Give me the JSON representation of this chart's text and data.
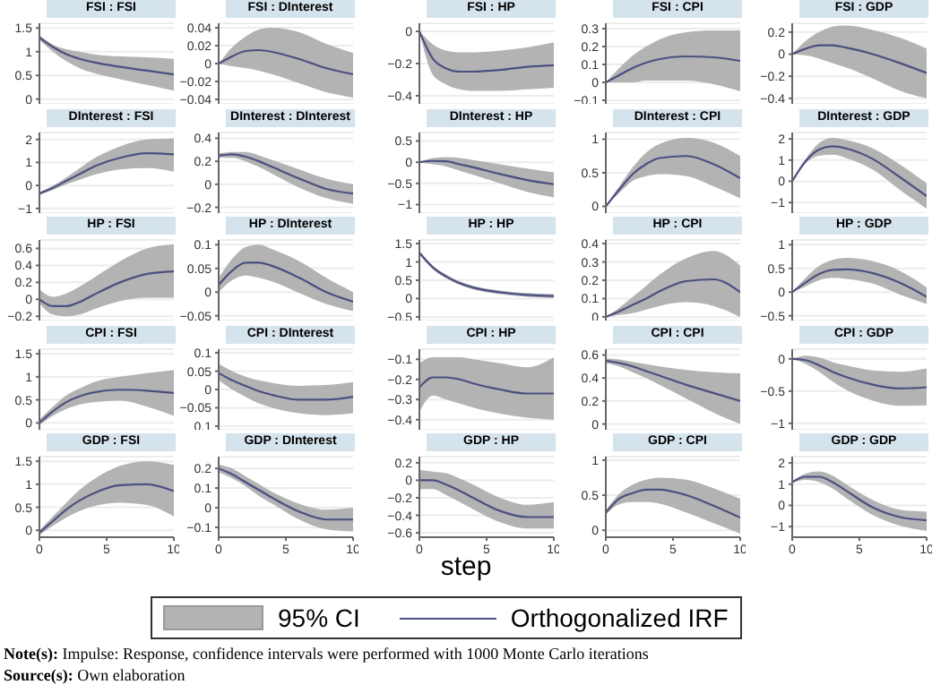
{
  "chart_data": [
    {
      "type": "line",
      "title": "FSI : FSI",
      "x": [
        0,
        1,
        2,
        3,
        4,
        6,
        8,
        10
      ],
      "xlim": [
        0,
        10
      ],
      "xticks": [
        0,
        5,
        10
      ],
      "ylim": [
        -0.1,
        1.6
      ],
      "yticks": [
        0,
        0.5,
        1,
        1.5
      ],
      "grid": "y",
      "tick_labels": "y",
      "series": [
        {
          "color": "#4b5080",
          "values": [
            1.3,
            1.1,
            0.95,
            0.85,
            0.78,
            0.68,
            0.6,
            0.52
          ],
          "lower": [
            1.25,
            1.0,
            0.8,
            0.65,
            0.55,
            0.42,
            0.3,
            0.18
          ],
          "upper": [
            1.35,
            1.15,
            1.05,
            1.0,
            0.95,
            0.9,
            0.88,
            0.85
          ]
        }
      ]
    },
    {
      "type": "line",
      "title": "FSI : DInterest",
      "x": [
        0,
        1,
        2,
        3,
        4,
        6,
        8,
        10
      ],
      "xlim": [
        0,
        10
      ],
      "xticks": [
        0,
        5,
        10
      ],
      "ylim": [
        -0.045,
        0.045
      ],
      "yticks": [
        -0.04,
        -0.02,
        0,
        0.02,
        0.04
      ],
      "grid": "y",
      "tick_labels": "y",
      "series": [
        {
          "color": "#4b5080",
          "values": [
            0,
            0.008,
            0.014,
            0.015,
            0.013,
            0.005,
            -0.005,
            -0.012
          ],
          "lower": [
            0,
            -0.003,
            -0.005,
            -0.008,
            -0.012,
            -0.022,
            -0.032,
            -0.038
          ],
          "upper": [
            0,
            0.018,
            0.03,
            0.038,
            0.04,
            0.035,
            0.022,
            0.012
          ]
        }
      ]
    },
    {
      "type": "line",
      "title": "FSI : HP",
      "x": [
        0,
        1,
        2,
        3,
        4,
        6,
        8,
        10
      ],
      "xlim": [
        0,
        10
      ],
      "xticks": [
        0,
        5,
        10
      ],
      "ylim": [
        -0.45,
        0.05
      ],
      "yticks": [
        -0.4,
        -0.2,
        0
      ],
      "grid": "y",
      "tick_labels": "y",
      "series": [
        {
          "color": "#4b5080",
          "values": [
            0,
            -0.17,
            -0.23,
            -0.25,
            -0.25,
            -0.24,
            -0.22,
            -0.21
          ],
          "lower": [
            0,
            -0.27,
            -0.33,
            -0.36,
            -0.37,
            -0.37,
            -0.36,
            -0.35
          ],
          "upper": [
            0,
            -0.08,
            -0.12,
            -0.13,
            -0.13,
            -0.12,
            -0.1,
            -0.07
          ]
        }
      ]
    },
    {
      "type": "line",
      "title": "FSI : CPI",
      "x": [
        0,
        1,
        2,
        3,
        4,
        6,
        8,
        10
      ],
      "xlim": [
        0,
        10
      ],
      "xticks": [
        0,
        5,
        10
      ],
      "ylim": [
        -0.12,
        0.33
      ],
      "yticks": [
        -0.1,
        0,
        0.1,
        0.2,
        0.3
      ],
      "grid": "y",
      "tick_labels": "y",
      "series": [
        {
          "color": "#4b5080",
          "values": [
            0,
            0.04,
            0.08,
            0.11,
            0.13,
            0.145,
            0.14,
            0.12
          ],
          "lower": [
            0,
            0,
            0,
            0.01,
            0.01,
            0.01,
            -0.01,
            -0.05
          ],
          "upper": [
            0,
            0.08,
            0.15,
            0.2,
            0.24,
            0.28,
            0.29,
            0.29
          ]
        }
      ]
    },
    {
      "type": "line",
      "title": "FSI : GDP",
      "x": [
        0,
        1,
        2,
        3,
        4,
        6,
        8,
        10
      ],
      "xlim": [
        0,
        10
      ],
      "xticks": [
        0,
        5,
        10
      ],
      "ylim": [
        -0.45,
        0.28
      ],
      "yticks": [
        -0.4,
        -0.2,
        0,
        0.2
      ],
      "grid": "y",
      "tick_labels": "y",
      "series": [
        {
          "color": "#4b5080",
          "values": [
            0,
            0.05,
            0.08,
            0.08,
            0.06,
            0,
            -0.08,
            -0.17
          ],
          "lower": [
            0,
            -0.01,
            -0.04,
            -0.08,
            -0.12,
            -0.22,
            -0.33,
            -0.4
          ],
          "upper": [
            0,
            0.12,
            0.2,
            0.25,
            0.26,
            0.22,
            0.15,
            0.05
          ]
        }
      ]
    },
    {
      "type": "line",
      "title": "DInterest : FSI",
      "x": [
        0,
        1,
        2,
        3,
        4,
        6,
        8,
        10
      ],
      "xlim": [
        0,
        10
      ],
      "xticks": [
        0,
        5,
        10
      ],
      "ylim": [
        -1.2,
        2.3
      ],
      "yticks": [
        -1,
        0,
        1,
        2
      ],
      "grid": "y",
      "tick_labels": "y",
      "series": [
        {
          "color": "#4b5080",
          "values": [
            -0.35,
            -0.1,
            0.2,
            0.5,
            0.8,
            1.2,
            1.4,
            1.35
          ],
          "lower": [
            -0.4,
            -0.2,
            0.05,
            0.25,
            0.45,
            0.7,
            0.75,
            0.6
          ],
          "upper": [
            -0.3,
            0,
            0.35,
            0.75,
            1.15,
            1.7,
            2.0,
            2.05
          ]
        }
      ]
    },
    {
      "type": "line",
      "title": "DInterest : DInterest",
      "x": [
        0,
        1,
        2,
        3,
        4,
        6,
        8,
        10
      ],
      "xlim": [
        0,
        10
      ],
      "xticks": [
        0,
        5,
        10
      ],
      "ylim": [
        -0.25,
        0.45
      ],
      "yticks": [
        -0.2,
        0,
        0.2,
        0.4
      ],
      "grid": "y",
      "tick_labels": "y",
      "series": [
        {
          "color": "#4b5080",
          "values": [
            0.25,
            0.26,
            0.24,
            0.2,
            0.15,
            0.05,
            -0.04,
            -0.08
          ],
          "lower": [
            0.23,
            0.23,
            0.2,
            0.15,
            0.09,
            -0.03,
            -0.12,
            -0.17
          ],
          "upper": [
            0.27,
            0.28,
            0.28,
            0.25,
            0.21,
            0.13,
            0.05,
            0
          ]
        }
      ]
    },
    {
      "type": "line",
      "title": "DInterest : HP",
      "x": [
        0,
        1,
        2,
        3,
        4,
        6,
        8,
        10
      ],
      "xlim": [
        0,
        10
      ],
      "xticks": [
        0,
        5,
        10
      ],
      "ylim": [
        -1.2,
        0.7
      ],
      "yticks": [
        -1,
        -0.5,
        0,
        0.5
      ],
      "grid": "y",
      "tick_labels": "y",
      "series": [
        {
          "color": "#4b5080",
          "values": [
            0,
            0.03,
            0.02,
            -0.05,
            -0.12,
            -0.28,
            -0.42,
            -0.52
          ],
          "lower": [
            0,
            -0.05,
            -0.1,
            -0.2,
            -0.3,
            -0.5,
            -0.7,
            -0.83
          ],
          "upper": [
            0,
            0.1,
            0.12,
            0.1,
            0.05,
            -0.05,
            -0.15,
            -0.24
          ]
        }
      ]
    },
    {
      "type": "line",
      "title": "DInterest : CPI",
      "x": [
        0,
        1,
        2,
        3,
        4,
        6,
        8,
        10
      ],
      "xlim": [
        0,
        10
      ],
      "xticks": [
        0,
        5,
        10
      ],
      "ylim": [
        -0.1,
        1.1
      ],
      "yticks": [
        0,
        0.5,
        1
      ],
      "grid": "y",
      "tick_labels": "y",
      "series": [
        {
          "color": "#4b5080",
          "values": [
            0,
            0.25,
            0.48,
            0.63,
            0.72,
            0.75,
            0.63,
            0.42
          ],
          "lower": [
            0,
            0.2,
            0.38,
            0.45,
            0.48,
            0.45,
            0.3,
            0.12
          ],
          "upper": [
            0,
            0.3,
            0.58,
            0.8,
            0.93,
            1.02,
            0.95,
            0.75
          ]
        }
      ]
    },
    {
      "type": "line",
      "title": "DInterest : GDP",
      "x": [
        0,
        1,
        2,
        3,
        4,
        6,
        8,
        10
      ],
      "xlim": [
        0,
        10
      ],
      "xticks": [
        0,
        5,
        10
      ],
      "ylim": [
        -1.5,
        2.3
      ],
      "yticks": [
        -1,
        0,
        1,
        2
      ],
      "grid": "y",
      "tick_labels": "y",
      "series": [
        {
          "color": "#4b5080",
          "values": [
            0,
            0.95,
            1.5,
            1.65,
            1.55,
            1.05,
            0.2,
            -0.7
          ],
          "lower": [
            0,
            0.85,
            1.2,
            1.25,
            1.1,
            0.55,
            -0.4,
            -1.3
          ],
          "upper": [
            0,
            1.05,
            1.8,
            2.05,
            1.95,
            1.55,
            0.8,
            -0.1
          ]
        }
      ]
    },
    {
      "type": "line",
      "title": "HP : FSI",
      "x": [
        0,
        1,
        2,
        3,
        4,
        6,
        8,
        10
      ],
      "xlim": [
        0,
        10
      ],
      "xticks": [
        0,
        5,
        10
      ],
      "ylim": [
        -0.25,
        0.7
      ],
      "yticks": [
        -0.2,
        0,
        0.2,
        0.4,
        0.6
      ],
      "grid": "y",
      "tick_labels": "y",
      "series": [
        {
          "color": "#4b5080",
          "values": [
            0,
            -0.08,
            -0.08,
            -0.03,
            0.05,
            0.2,
            0.3,
            0.33
          ],
          "lower": [
            -0.05,
            -0.18,
            -0.2,
            -0.18,
            -0.12,
            -0.02,
            0.02,
            0.02
          ],
          "upper": [
            0.12,
            0.03,
            0.07,
            0.15,
            0.25,
            0.45,
            0.6,
            0.65
          ]
        }
      ]
    },
    {
      "type": "line",
      "title": "HP : DInterest",
      "x": [
        0,
        1,
        2,
        3,
        4,
        6,
        8,
        10
      ],
      "xlim": [
        0,
        10
      ],
      "xticks": [
        0,
        5,
        10
      ],
      "ylim": [
        -0.06,
        0.11
      ],
      "yticks": [
        -0.05,
        0,
        0.05,
        0.1
      ],
      "grid": "y",
      "tick_labels": "y",
      "series": [
        {
          "color": "#4b5080",
          "values": [
            0.015,
            0.045,
            0.062,
            0.062,
            0.055,
            0.03,
            0,
            -0.02
          ],
          "lower": [
            0,
            0.025,
            0.035,
            0.03,
            0.022,
            -0.002,
            -0.025,
            -0.04
          ],
          "upper": [
            0.03,
            0.07,
            0.095,
            0.1,
            0.09,
            0.065,
            0.03,
            0
          ]
        }
      ]
    },
    {
      "type": "line",
      "title": "HP : HP",
      "x": [
        0,
        1,
        2,
        3,
        4,
        6,
        8,
        10
      ],
      "xlim": [
        0,
        10
      ],
      "xticks": [
        0,
        5,
        10
      ],
      "ylim": [
        -0.6,
        1.6
      ],
      "yticks": [
        -0.5,
        0,
        0.5,
        1,
        1.5
      ],
      "grid": "y",
      "tick_labels": "y",
      "series": [
        {
          "color": "#4b5080",
          "values": [
            1.25,
            0.85,
            0.6,
            0.42,
            0.3,
            0.17,
            0.1,
            0.07
          ],
          "lower": [
            1.2,
            0.8,
            0.55,
            0.37,
            0.25,
            0.12,
            0.05,
            0.02
          ],
          "upper": [
            1.3,
            0.9,
            0.65,
            0.47,
            0.35,
            0.22,
            0.15,
            0.12
          ]
        }
      ]
    },
    {
      "type": "line",
      "title": "HP : CPI",
      "x": [
        0,
        1,
        2,
        3,
        4,
        6,
        8,
        10
      ],
      "xlim": [
        0,
        10
      ],
      "xticks": [
        0,
        5,
        10
      ],
      "ylim": [
        -0.02,
        0.42
      ],
      "yticks": [
        0,
        0.1,
        0.2,
        0.3,
        0.4
      ],
      "grid": "y",
      "tick_labels": "y",
      "series": [
        {
          "color": "#4b5080",
          "values": [
            0,
            0.03,
            0.065,
            0.1,
            0.14,
            0.195,
            0.205,
            0.135
          ],
          "lower": [
            0,
            0.01,
            0.02,
            0.04,
            0.06,
            0.08,
            0.06,
            0
          ],
          "upper": [
            0,
            0.05,
            0.11,
            0.17,
            0.23,
            0.32,
            0.36,
            0.28
          ]
        }
      ]
    },
    {
      "type": "line",
      "title": "HP : GDP",
      "x": [
        0,
        1,
        2,
        3,
        4,
        6,
        8,
        10
      ],
      "xlim": [
        0,
        10
      ],
      "xticks": [
        0,
        5,
        10
      ],
      "ylim": [
        -0.6,
        1.1
      ],
      "yticks": [
        -0.5,
        0,
        0.5,
        1
      ],
      "grid": "y",
      "tick_labels": "y",
      "series": [
        {
          "color": "#4b5080",
          "values": [
            0,
            0.2,
            0.38,
            0.47,
            0.48,
            0.4,
            0.2,
            -0.1
          ],
          "lower": [
            0,
            0.12,
            0.25,
            0.3,
            0.28,
            0.18,
            -0.05,
            -0.25
          ],
          "upper": [
            0,
            0.3,
            0.55,
            0.68,
            0.72,
            0.65,
            0.45,
            0.1
          ]
        }
      ]
    },
    {
      "type": "line",
      "title": "CPI : FSI",
      "x": [
        0,
        1,
        2,
        3,
        4,
        6,
        8,
        10
      ],
      "xlim": [
        0,
        10
      ],
      "xticks": [
        0,
        5,
        10
      ],
      "ylim": [
        -0.15,
        1.6
      ],
      "yticks": [
        0,
        0.5,
        1,
        1.5
      ],
      "grid": "y",
      "tick_labels": "y",
      "series": [
        {
          "color": "#4b5080",
          "values": [
            0,
            0.25,
            0.45,
            0.58,
            0.66,
            0.72,
            0.7,
            0.65
          ],
          "lower": [
            -0.05,
            0.15,
            0.3,
            0.4,
            0.45,
            0.48,
            0.35,
            0.15
          ],
          "upper": [
            0.07,
            0.35,
            0.6,
            0.75,
            0.88,
            1.0,
            1.08,
            1.15
          ]
        }
      ]
    },
    {
      "type": "line",
      "title": "CPI : DInterest",
      "x": [
        0,
        1,
        2,
        3,
        4,
        6,
        8,
        10
      ],
      "xlim": [
        0,
        10
      ],
      "xticks": [
        0,
        5,
        10
      ],
      "ylim": [
        -0.11,
        0.11
      ],
      "yticks": [
        {
          "value": -0.1,
          "label": "0.1"
        },
        -0.05,
        0,
        0.05,
        0.1
      ],
      "grid": "y",
      "tick_labels": "y",
      "series": [
        {
          "color": "#4b5080",
          "values": [
            0.045,
            0.025,
            0.01,
            -0.005,
            -0.015,
            -0.028,
            -0.028,
            -0.02
          ],
          "lower": [
            0.025,
            0,
            -0.02,
            -0.038,
            -0.05,
            -0.065,
            -0.07,
            -0.065
          ],
          "upper": [
            0.07,
            0.05,
            0.035,
            0.025,
            0.018,
            0.01,
            0.012,
            0.02
          ]
        }
      ]
    },
    {
      "type": "line",
      "title": "CPI : HP",
      "x": [
        0,
        1,
        2,
        3,
        4,
        6,
        8,
        10
      ],
      "xlim": [
        0,
        10
      ],
      "xticks": [
        0,
        5,
        10
      ],
      "ylim": [
        -0.45,
        -0.05
      ],
      "yticks": [
        -0.4,
        -0.3,
        -0.2,
        -0.1
      ],
      "grid": "y",
      "tick_labels": "y",
      "series": [
        {
          "color": "#4b5080",
          "values": [
            -0.24,
            -0.19,
            -0.19,
            -0.2,
            -0.22,
            -0.25,
            -0.27,
            -0.27
          ],
          "lower": [
            -0.36,
            -0.28,
            -0.3,
            -0.32,
            -0.34,
            -0.37,
            -0.39,
            -0.4
          ],
          "upper": [
            -0.12,
            -0.09,
            -0.09,
            -0.09,
            -0.1,
            -0.12,
            -0.14,
            -0.09
          ]
        }
      ]
    },
    {
      "type": "line",
      "title": "CPI : CPI",
      "x": [
        0,
        1,
        2,
        3,
        4,
        6,
        8,
        10
      ],
      "xlim": [
        0,
        10
      ],
      "xticks": [
        0,
        5,
        10
      ],
      "ylim": [
        -0.05,
        0.65
      ],
      "yticks": [
        0,
        0.2,
        0.4,
        0.6
      ],
      "grid": "y",
      "tick_labels": "y",
      "series": [
        {
          "color": "#4b5080",
          "values": [
            0.55,
            0.53,
            0.5,
            0.46,
            0.42,
            0.34,
            0.27,
            0.2
          ],
          "lower": [
            0.53,
            0.5,
            0.45,
            0.4,
            0.34,
            0.22,
            0.1,
            0
          ],
          "upper": [
            0.57,
            0.56,
            0.54,
            0.52,
            0.5,
            0.47,
            0.45,
            0.44
          ]
        }
      ]
    },
    {
      "type": "line",
      "title": "CPI : GDP",
      "x": [
        0,
        1,
        2,
        3,
        4,
        6,
        8,
        10
      ],
      "xlim": [
        0,
        10
      ],
      "xticks": [
        0,
        5,
        10
      ],
      "ylim": [
        -1.1,
        0.15
      ],
      "yticks": [
        -1,
        -0.5,
        0
      ],
      "grid": "y",
      "tick_labels": "y",
      "series": [
        {
          "color": "#4b5080",
          "values": [
            0,
            -0.02,
            -0.1,
            -0.2,
            -0.28,
            -0.4,
            -0.46,
            -0.44
          ],
          "lower": [
            0,
            -0.08,
            -0.2,
            -0.35,
            -0.48,
            -0.65,
            -0.73,
            -0.72
          ],
          "upper": [
            0,
            0.05,
            0.02,
            -0.05,
            -0.1,
            -0.18,
            -0.2,
            -0.15
          ]
        }
      ]
    },
    {
      "type": "line",
      "title": "GDP : FSI",
      "x": [
        0,
        1,
        2,
        3,
        4,
        6,
        8,
        10
      ],
      "xlim": [
        0,
        10
      ],
      "xticks": [
        0,
        5,
        10
      ],
      "ylim": [
        -0.15,
        1.6
      ],
      "yticks": [
        0,
        0.5,
        1,
        1.5
      ],
      "grid": "y",
      "series": [
        {
          "color": "#4b5080",
          "values": [
            -0.05,
            0.2,
            0.45,
            0.65,
            0.8,
            0.98,
            1.0,
            0.85
          ],
          "lower": [
            -0.1,
            0.1,
            0.28,
            0.42,
            0.52,
            0.6,
            0.55,
            0.3
          ],
          "upper": [
            0,
            0.3,
            0.6,
            0.88,
            1.1,
            1.4,
            1.5,
            1.42
          ]
        }
      ]
    },
    {
      "type": "line",
      "title": "GDP : DInterest",
      "x": [
        0,
        1,
        2,
        3,
        4,
        6,
        8,
        10
      ],
      "xlim": [
        0,
        10
      ],
      "xticks": [
        0,
        5,
        10
      ],
      "ylim": [
        -0.15,
        0.26
      ],
      "yticks": [
        -0.1,
        0,
        0.1,
        0.2
      ],
      "grid": "y",
      "series": [
        {
          "color": "#4b5080",
          "values": [
            0.2,
            0.17,
            0.13,
            0.09,
            0.05,
            -0.02,
            -0.06,
            -0.06
          ],
          "lower": [
            0.18,
            0.15,
            0.11,
            0.06,
            0.02,
            -0.06,
            -0.11,
            -0.12
          ],
          "upper": [
            0.22,
            0.2,
            0.16,
            0.12,
            0.08,
            0.02,
            -0.01,
            0
          ]
        }
      ]
    },
    {
      "type": "line",
      "title": "GDP : HP",
      "xlabel": "step",
      "legend": "bottom",
      "annotations": [
        "95% CI",
        "Note(s): Impulse: Response, confidence intervals were performed with 1000 Monte Carlo iterations",
        "Source(s): Own elaboration"
      ],
      "x": [
        0,
        1,
        2,
        3,
        4,
        6,
        8,
        10
      ],
      "xlim": [
        0,
        10
      ],
      "xticks": [
        0,
        5,
        10
      ],
      "ylim": [
        -0.65,
        0.27
      ],
      "yticks": [
        -0.6,
        -0.4,
        -0.2,
        0,
        0.2
      ],
      "grid": "y",
      "series": [
        {
          "name": "Orthogonalized IRF",
          "color": "#4b5080",
          "values": [
            0,
            0,
            -0.05,
            -0.12,
            -0.2,
            -0.35,
            -0.42,
            -0.42
          ],
          "lower": [
            -0.1,
            -0.1,
            -0.17,
            -0.25,
            -0.33,
            -0.48,
            -0.55,
            -0.55
          ],
          "upper": [
            0.12,
            0.1,
            0.08,
            0.02,
            -0.05,
            -0.2,
            -0.28,
            -0.25
          ]
        }
      ]
    },
    {
      "type": "line",
      "title": "GDP : CPI",
      "x": [
        0,
        1,
        2,
        3,
        4,
        6,
        8,
        10
      ],
      "xlim": [
        0,
        10
      ],
      "xticks": [
        0,
        5,
        10
      ],
      "ylim": [
        -0.1,
        1.05
      ],
      "yticks": [
        0,
        0.5,
        1
      ],
      "grid": "y",
      "series": [
        {
          "color": "#4b5080",
          "values": [
            0.25,
            0.45,
            0.53,
            0.58,
            0.58,
            0.5,
            0.35,
            0.18
          ],
          "lower": [
            0.22,
            0.37,
            0.4,
            0.4,
            0.38,
            0.25,
            0.1,
            -0.05
          ],
          "upper": [
            0.28,
            0.52,
            0.65,
            0.72,
            0.75,
            0.72,
            0.6,
            0.45
          ]
        }
      ]
    },
    {
      "type": "line",
      "title": "GDP : GDP",
      "x": [
        0,
        1,
        2,
        3,
        4,
        6,
        8,
        10
      ],
      "xlim": [
        0,
        10
      ],
      "xticks": [
        0,
        5,
        10
      ],
      "ylim": [
        -1.5,
        2.3
      ],
      "yticks": [
        -1,
        0,
        1,
        2
      ],
      "grid": "y",
      "series": [
        {
          "color": "#4b5080",
          "values": [
            1.1,
            1.35,
            1.35,
            1.1,
            0.7,
            -0.1,
            -0.55,
            -0.7
          ],
          "lower": [
            1.05,
            1.2,
            1.1,
            0.8,
            0.35,
            -0.45,
            -0.95,
            -1.2
          ],
          "upper": [
            1.15,
            1.5,
            1.6,
            1.4,
            1.0,
            0.25,
            -0.2,
            -0.3
          ]
        }
      ]
    }
  ]
}
